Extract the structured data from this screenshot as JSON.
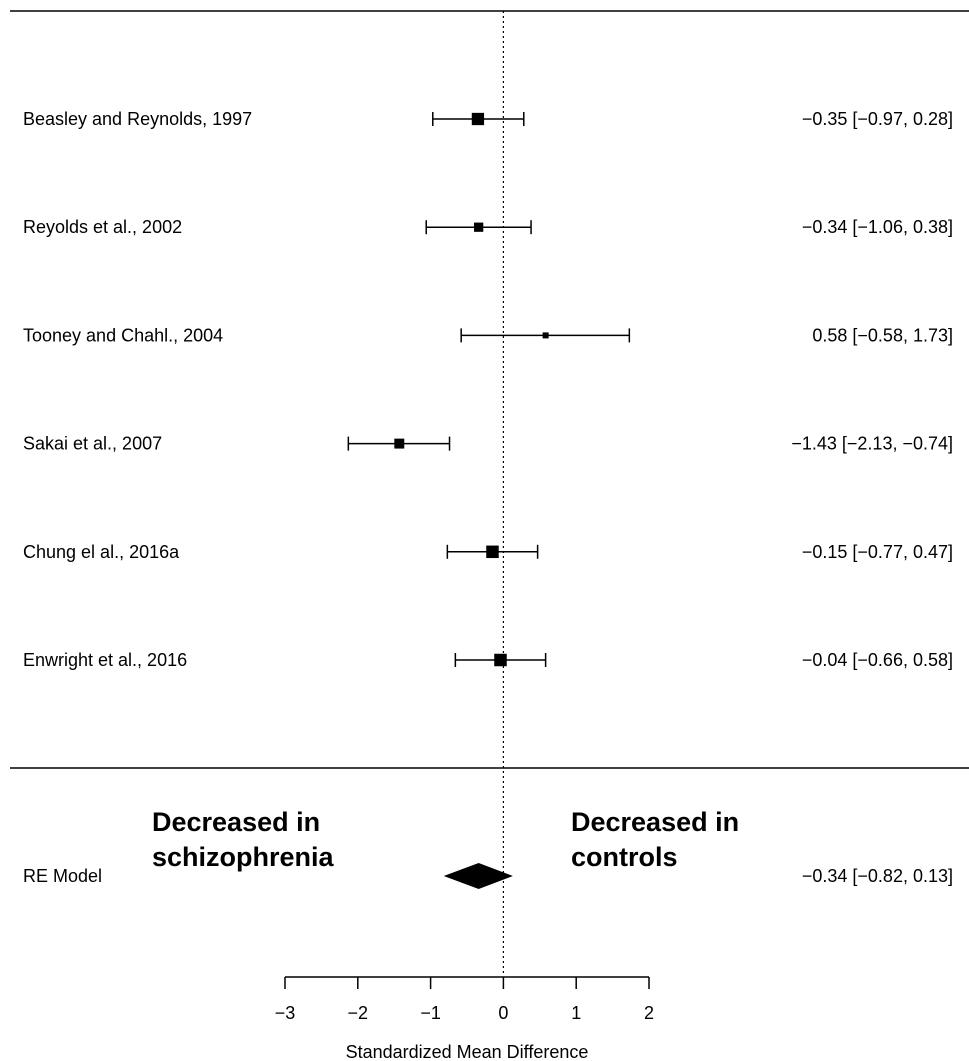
{
  "chart_data": {
    "type": "forest",
    "xlabel": "Standardized Mean Difference",
    "xlim": [
      -3,
      2
    ],
    "xticks": [
      -3,
      -2,
      -1,
      0,
      1,
      2
    ],
    "xtick_labels": [
      "−3",
      "−2",
      "−1",
      "0",
      "1",
      "2"
    ],
    "reference_line": 0,
    "studies": [
      {
        "label": "Beasley and Reynolds, 1997",
        "estimate": -0.35,
        "lower": -0.97,
        "upper": 0.28,
        "text": "−0.35 [−0.97,  0.28]"
      },
      {
        "label": "Reyolds et al., 2002",
        "estimate": -0.34,
        "lower": -1.06,
        "upper": 0.38,
        "text": "−0.34 [−1.06,  0.38]"
      },
      {
        "label": "Tooney and Chahl., 2004",
        "estimate": 0.58,
        "lower": -0.58,
        "upper": 1.73,
        "text": "0.58 [−0.58,  1.73]"
      },
      {
        "label": "Sakai et al., 2007",
        "estimate": -1.43,
        "lower": -2.13,
        "upper": -0.74,
        "text": "−1.43 [−2.13, −0.74]"
      },
      {
        "label": "Chung el al., 2016a",
        "estimate": -0.15,
        "lower": -0.77,
        "upper": 0.47,
        "text": "−0.15 [−0.77,  0.47]"
      },
      {
        "label": "Enwright et al., 2016",
        "estimate": -0.04,
        "lower": -0.66,
        "upper": 0.58,
        "text": "−0.04 [−0.66,  0.58]"
      }
    ],
    "summary": {
      "label": "RE Model",
      "estimate": -0.34,
      "lower": -0.82,
      "upper": 0.13,
      "text": "−0.34 [−0.82,  0.13]"
    },
    "annotations": {
      "left": [
        "Decreased in",
        "schizophrenia"
      ],
      "right": [
        "Decreased in",
        "controls"
      ]
    }
  }
}
